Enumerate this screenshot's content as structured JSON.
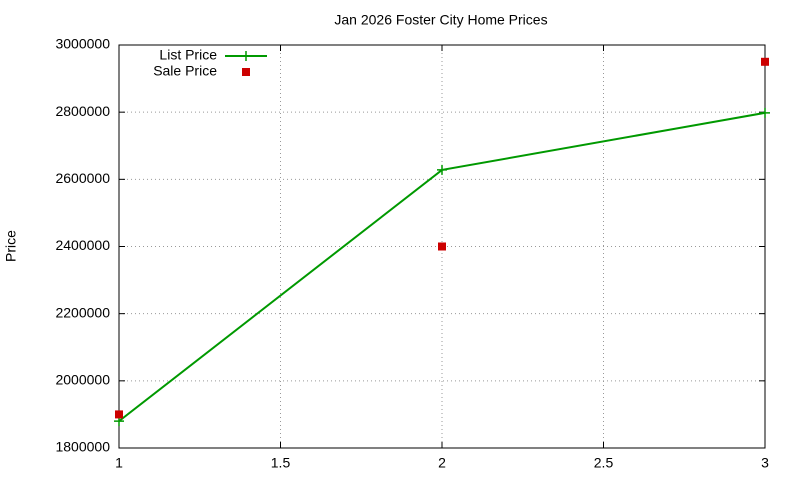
{
  "chart_data": {
    "type": "line",
    "title": "Jan 2026 Foster City Home Prices",
    "y_label": "Price",
    "x": [
      1,
      2,
      3
    ],
    "series": [
      {
        "name": "List Price",
        "color": "#009900",
        "marker": "plus",
        "line": true,
        "values": [
          1880000,
          2628000,
          2798000
        ]
      },
      {
        "name": "Sale Price",
        "color": "#cc0000",
        "marker": "square",
        "line": false,
        "values": [
          1900000,
          2400000,
          2950000
        ]
      }
    ],
    "xlim": [
      1,
      3
    ],
    "xticks": [
      1,
      1.5,
      2,
      2.5,
      3
    ],
    "ylim": [
      1800000,
      3000000
    ],
    "yticks": [
      1800000,
      2000000,
      2200000,
      2400000,
      2600000,
      2800000,
      3000000
    ],
    "grid": true,
    "legend": "top-left"
  }
}
